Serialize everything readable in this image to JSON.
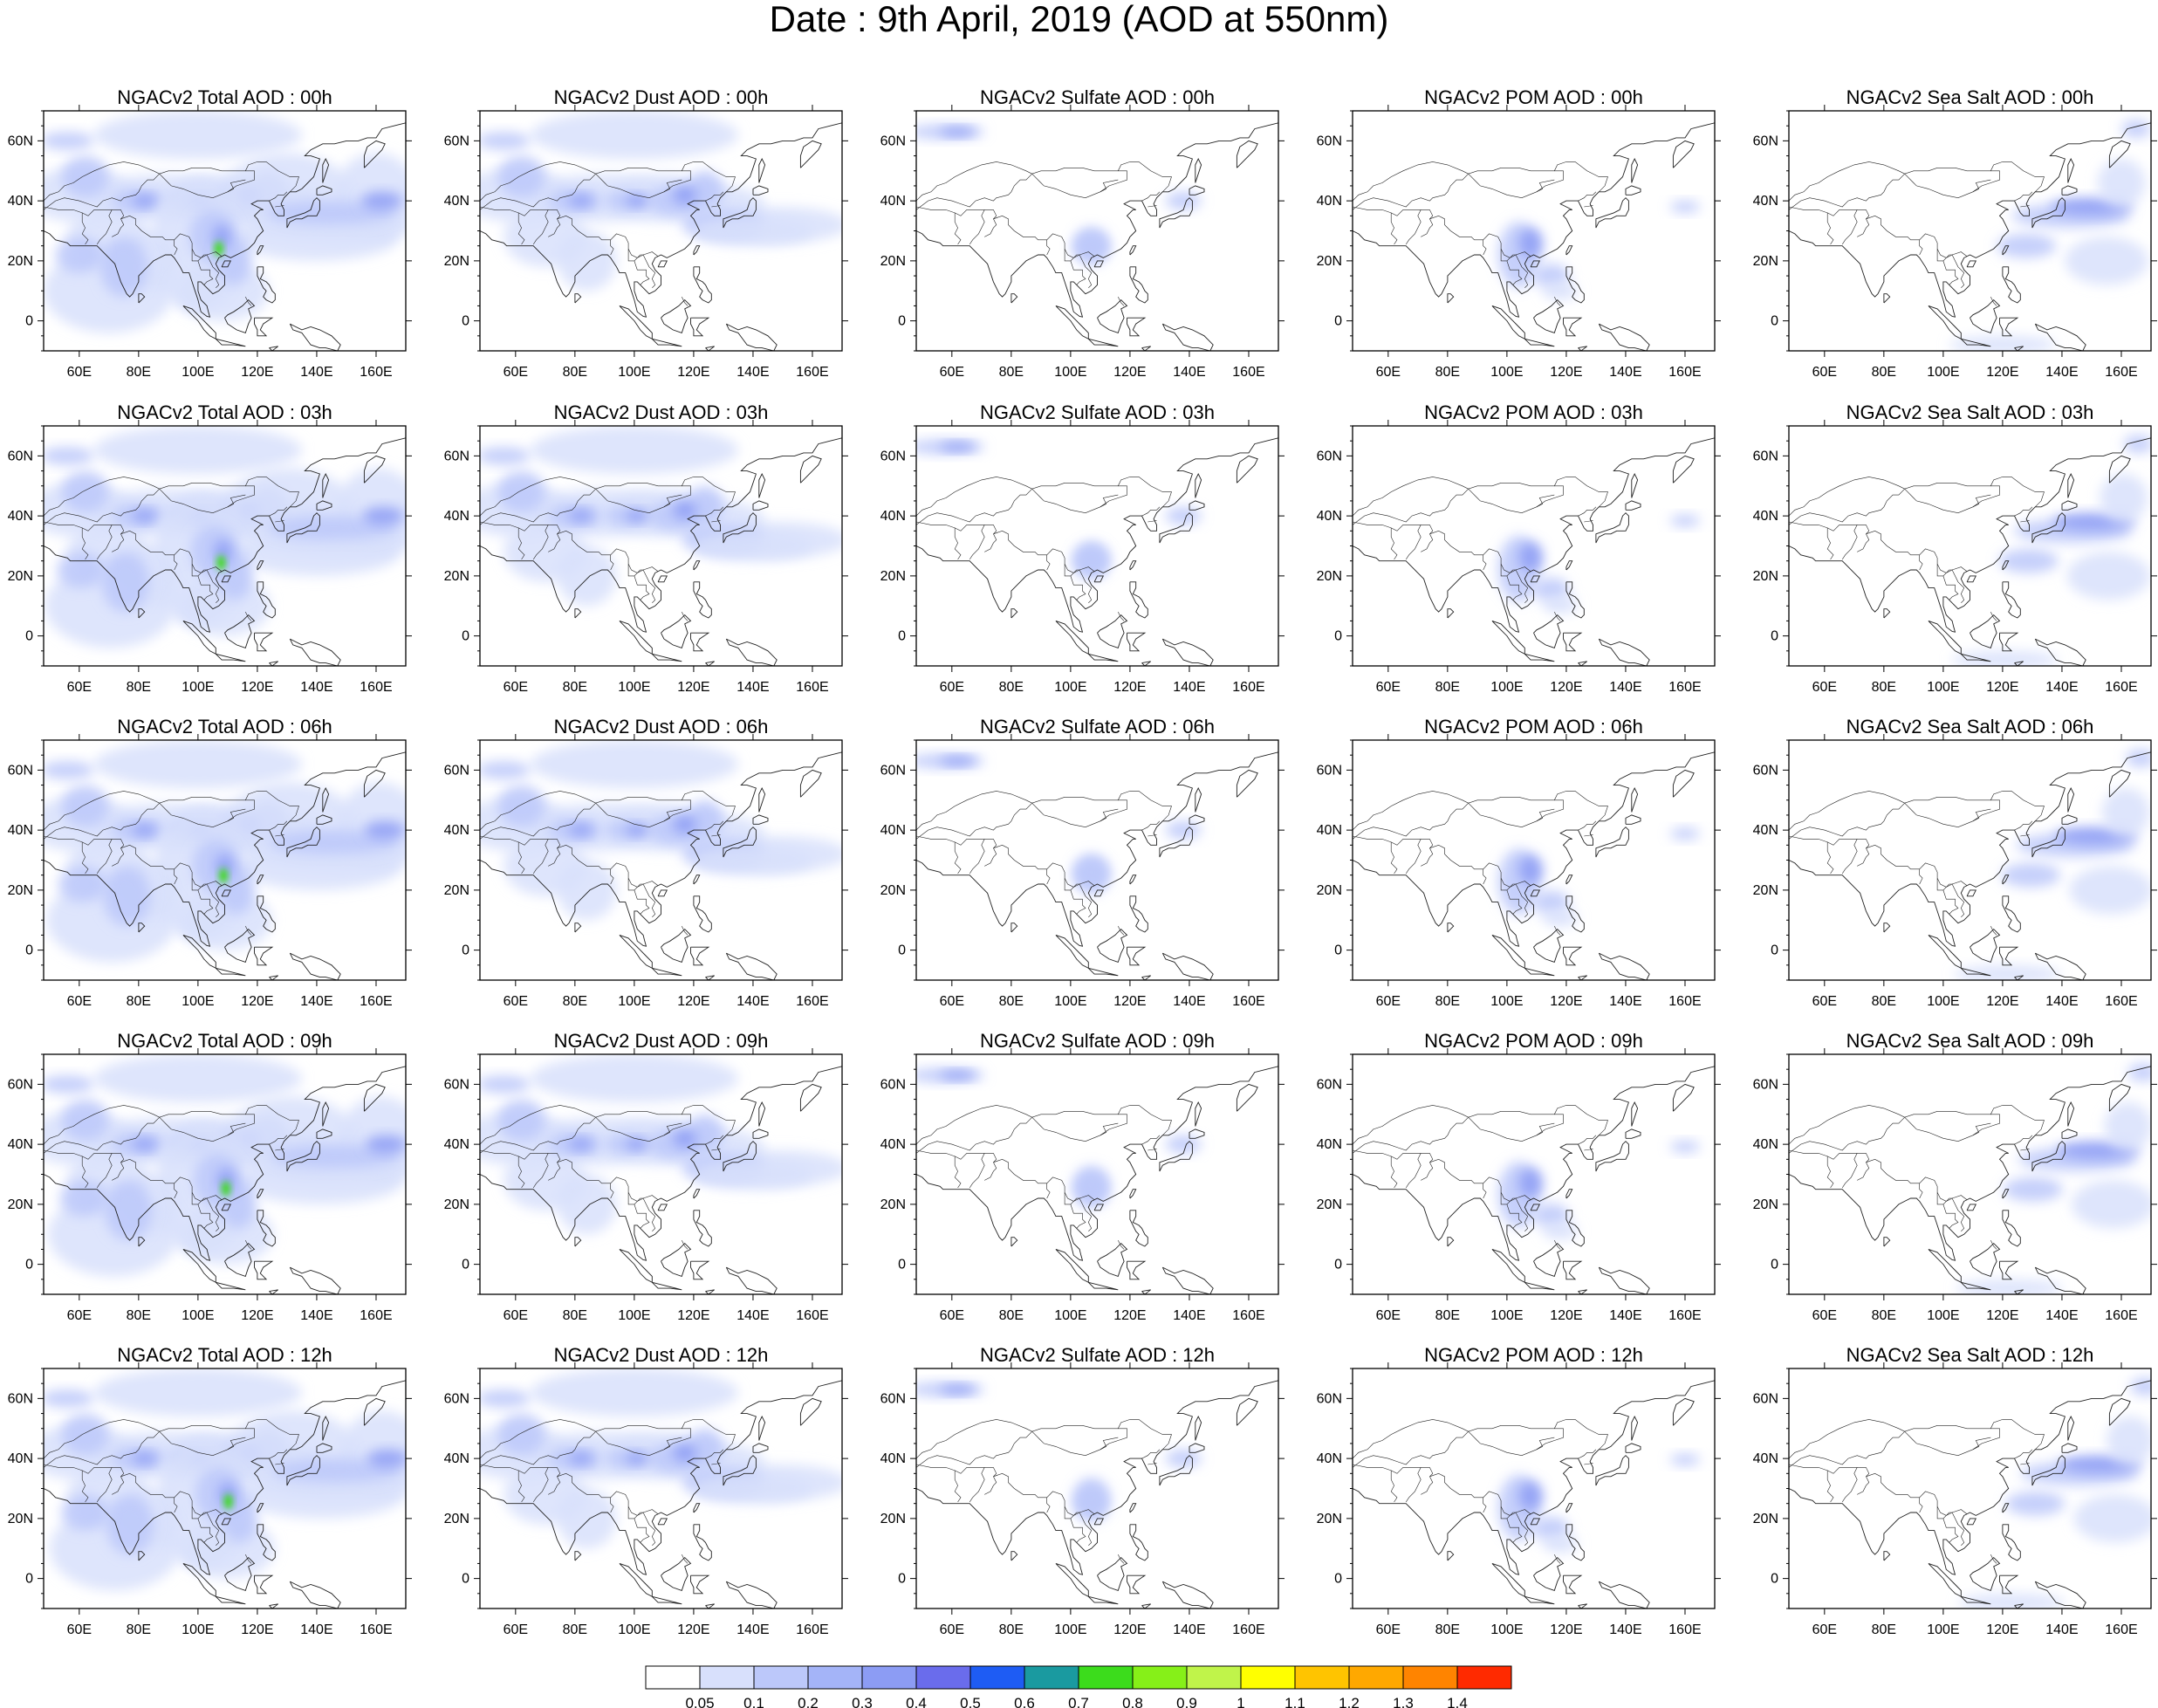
{
  "figure": {
    "title": "Date : 9th April, 2019 (AOD at 550nm)"
  },
  "axes": {
    "lat_labels": [
      "60N",
      "40N",
      "20N",
      "0"
    ],
    "lon_labels": [
      "60E",
      "80E",
      "100E",
      "120E",
      "140E",
      "160E"
    ]
  },
  "panels": [
    [
      "NGACv2 Total AOD : 00h",
      "NGACv2 Dust AOD : 00h",
      "NGACv2 Sulfate AOD : 00h",
      "NGACv2 POM AOD : 00h",
      "NGACv2 Sea Salt AOD : 00h"
    ],
    [
      "NGACv2 Total AOD : 03h",
      "NGACv2 Dust AOD : 03h",
      "NGACv2 Sulfate AOD : 03h",
      "NGACv2 POM AOD : 03h",
      "NGACv2 Sea Salt AOD : 03h"
    ],
    [
      "NGACv2 Total AOD : 06h",
      "NGACv2 Dust AOD : 06h",
      "NGACv2 Sulfate AOD : 06h",
      "NGACv2 POM AOD : 06h",
      "NGACv2 Sea Salt AOD : 06h"
    ],
    [
      "NGACv2 Total AOD : 09h",
      "NGACv2 Dust AOD : 09h",
      "NGACv2 Sulfate AOD : 09h",
      "NGACv2 POM AOD : 09h",
      "NGACv2 Sea Salt  AOD : 09h"
    ],
    [
      "NGACv2 Total AOD  : 12h",
      "NGACv2 Dust AOD : 12h",
      "NGACv2 Sulfate AOD : 12h",
      "NGACv2 POM  AOD : 12h",
      "NGACv2 Sea Salt  AOD : 12h"
    ]
  ],
  "colorbar": {
    "labels": [
      "0.05",
      "0.1",
      "0.2",
      "0.3",
      "0.4",
      "0.5",
      "0.6",
      "0.7",
      "0.8",
      "0.9",
      "1",
      "1.1",
      "1.2",
      "1.3",
      "1.4"
    ],
    "colors": [
      "#ffffff",
      "#d8e0fc",
      "#bcc8fa",
      "#a4b4f8",
      "#8c9cf4",
      "#6a6cec",
      "#1e5cf4",
      "#1a9aa0",
      "#3cdc1c",
      "#86f018",
      "#c0f44a",
      "#ffff00",
      "#ffc400",
      "#ffa800",
      "#ff8400",
      "#ff2a00"
    ]
  },
  "map_colors": {
    "coast": "#222222",
    "low": "#d8e0fc",
    "mid": "#bcc8fa",
    "high": "#8c9cf4",
    "peak": "#6a6cec",
    "extreme": "#3cdc1c"
  }
}
